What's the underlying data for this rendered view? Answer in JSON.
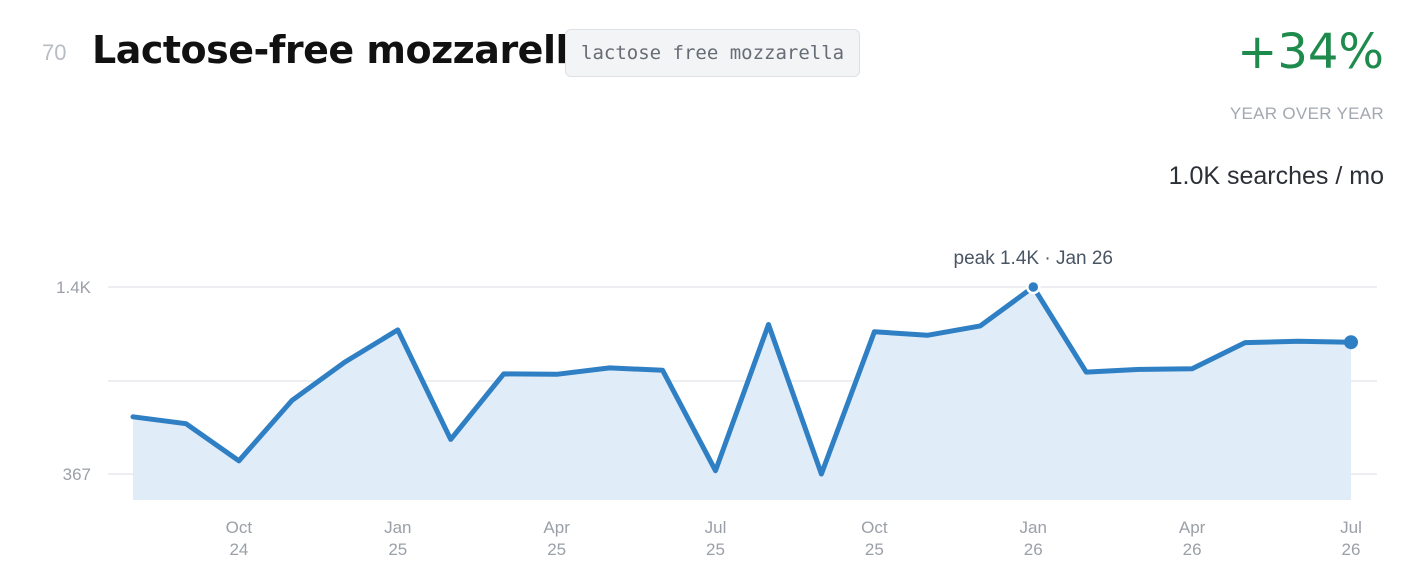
{
  "header": {
    "rank": "70",
    "title": "Lactose-free mozzarella",
    "query": "lactose free mozzarella",
    "growth": "+34%",
    "growth_label": "YEAR OVER YEAR",
    "volume": "1.0K searches / mo"
  },
  "peak_label": "peak 1.4K · Jan 26",
  "colors": {
    "line": "#2f7fc4",
    "area": "#e0ecf7",
    "growth": "#1e8a4c"
  },
  "chart_data": {
    "type": "area",
    "x": [
      "2024-08",
      "2024-09",
      "2024-10",
      "2024-11",
      "2024-12",
      "2025-01",
      "2025-02",
      "2025-03",
      "2025-04",
      "2025-05",
      "2025-06",
      "2025-07",
      "2025-08",
      "2025-09",
      "2025-10",
      "2025-11",
      "2025-12",
      "2026-01",
      "2026-02",
      "2026-03",
      "2026-04",
      "2026-05",
      "2026-06",
      "2026-07"
    ],
    "values": [
      683,
      645,
      440,
      773,
      985,
      1163,
      558,
      920,
      918,
      953,
      940,
      385,
      1193,
      367,
      1153,
      1133,
      1185,
      1400,
      930,
      945,
      948,
      1093,
      1100,
      1095
    ],
    "yticks": [
      {
        "value": 367,
        "label": "367"
      },
      {
        "value": 1400,
        "label": "1.4K"
      }
    ],
    "xticks": [
      {
        "index": 2,
        "month": "Oct",
        "year": "24"
      },
      {
        "index": 5,
        "month": "Jan",
        "year": "25"
      },
      {
        "index": 8,
        "month": "Apr",
        "year": "25"
      },
      {
        "index": 11,
        "month": "Jul",
        "year": "25"
      },
      {
        "index": 14,
        "month": "Oct",
        "year": "25"
      },
      {
        "index": 17,
        "month": "Jan",
        "year": "26"
      },
      {
        "index": 20,
        "month": "Apr",
        "year": "26"
      },
      {
        "index": 23,
        "month": "Jul",
        "year": "26"
      }
    ],
    "peak_index": 17,
    "grid": true
  }
}
